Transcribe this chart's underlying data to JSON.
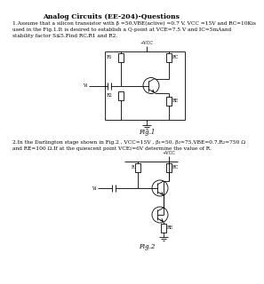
{
  "title": "Analog Circuits (EE-204)-Questions",
  "q1_line1": "1.Assume that a silicon transistor with β =50,VBE(active) =0.7 V, VCC =15V and RC=10Kis",
  "q1_line2": "used in the Fig.1.It is desired to establish a Q-point at VCE=7.5 V and IC=5mAand",
  "q1_line3": "stability factor S≤5.Find RC,R1 and R2.",
  "q2_line1": "2.In the Darlington stage shown in Fig.2 , VCC=15V , β₁=50, β₂=75,VBE=0.7,R₂=750 Ω",
  "q2_line2": "and RE=100 Ω.If at the quiescent point VCE₂=6V determine the value of R.",
  "fig1_label": "Fig.1",
  "fig2_label": "Fig.2",
  "bg_color": "#ffffff",
  "text_color": "#000000",
  "font_size_title": 5.5,
  "font_size_body": 4.2,
  "font_size_fig_label": 5.0,
  "font_size_label": 3.5
}
